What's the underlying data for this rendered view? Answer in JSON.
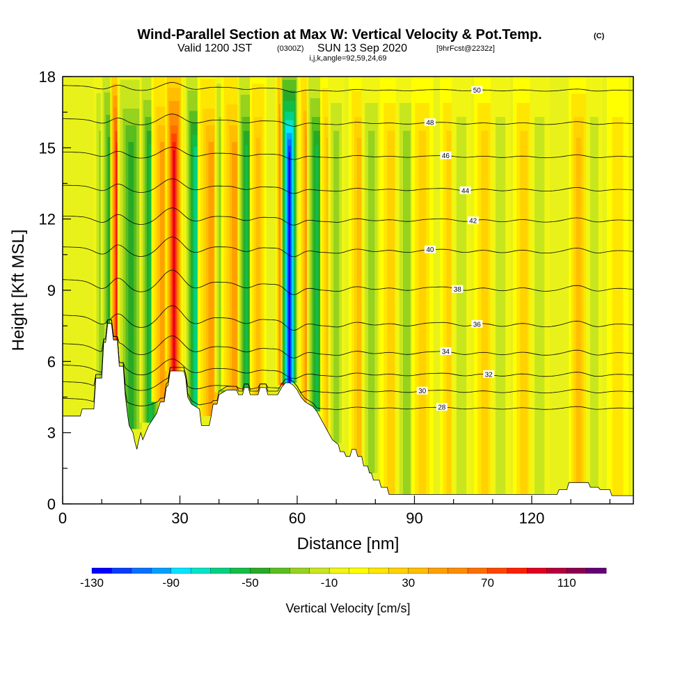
{
  "header": {
    "title_main": "Wind-Parallel Section at Max W: Vertical Velocity & Pot.Temp.",
    "title_mark": "(C)",
    "valid_a": "Valid 1200 JST",
    "valid_b": "(0300Z)",
    "valid_c": "SUN 13 Sep 2020",
    "valid_d": "[9hrFcst@2232z]",
    "params": "i,j,k,angle=92,59,24,69"
  },
  "chart_data": {
    "type": "heatmap",
    "xlabel": "Distance [nm]",
    "ylabel": "Height [Kft MSL]",
    "xlim": [
      0,
      146
    ],
    "ylim": [
      0,
      18
    ],
    "x_ticks": [
      0,
      30,
      60,
      90,
      120
    ],
    "y_ticks": [
      0,
      3,
      6,
      9,
      12,
      15,
      18
    ],
    "colorbar": {
      "label": "Vertical Velocity [cm/s]",
      "min": -130,
      "max": 130,
      "step": 10,
      "tick_values": [
        -130,
        -90,
        -50,
        -10,
        30,
        70,
        110
      ],
      "tick_labels": [
        "-130",
        "-90",
        "-50",
        "-10",
        "30",
        "70",
        "110"
      ],
      "colors": [
        "#0000ff",
        "#0a3cff",
        "#0a6eff",
        "#00a0ff",
        "#00e6ff",
        "#00e6c8",
        "#00d282",
        "#10be46",
        "#28aa28",
        "#5abe1e",
        "#96d21e",
        "#c8e61e",
        "#f0f514",
        "#ffff00",
        "#ffe600",
        "#ffd200",
        "#ffbe00",
        "#ffa000",
        "#ff8c00",
        "#ff6e00",
        "#ff4600",
        "#ff1e00",
        "#e10020",
        "#b4003c",
        "#8c0050",
        "#640078"
      ]
    },
    "vertical_velocity_features": [
      {
        "x": 10,
        "width": 1.5,
        "w": -30
      },
      {
        "x": 12,
        "width": 1.6,
        "w": -45
      },
      {
        "x": 14,
        "width": 1.3,
        "w": 100
      },
      {
        "x": 17.5,
        "width": 2.5,
        "w": -50
      },
      {
        "x": 22.5,
        "width": 2.0,
        "w": -55
      },
      {
        "x": 25.5,
        "width": 2.0,
        "w": 45
      },
      {
        "x": 28.5,
        "width": 1.6,
        "w": 95
      },
      {
        "x": 34,
        "width": 2.0,
        "w": -65
      },
      {
        "x": 38,
        "width": 2.5,
        "w": 50
      },
      {
        "x": 41,
        "width": 1.5,
        "w": -35
      },
      {
        "x": 44,
        "width": 2.5,
        "w": 45
      },
      {
        "x": 47,
        "width": 1.6,
        "w": -60
      },
      {
        "x": 50,
        "width": 1.5,
        "w": 35
      },
      {
        "x": 56.5,
        "width": 1.4,
        "w": 100
      },
      {
        "x": 58,
        "width": 1.6,
        "w": -125
      },
      {
        "x": 63,
        "width": 1.8,
        "w": 65
      },
      {
        "x": 65,
        "width": 1.8,
        "w": -60
      },
      {
        "x": 68,
        "width": 1.5,
        "w": 35
      },
      {
        "x": 70,
        "width": 1.5,
        "w": -30
      },
      {
        "x": 76,
        "width": 2.0,
        "w": 40
      },
      {
        "x": 79,
        "width": 1.8,
        "w": -25
      },
      {
        "x": 84,
        "width": 2.0,
        "w": 30
      },
      {
        "x": 88,
        "width": 2.0,
        "w": -25
      },
      {
        "x": 92,
        "width": 2.0,
        "w": 25
      },
      {
        "x": 99,
        "width": 1.8,
        "w": 30
      },
      {
        "x": 102,
        "width": 1.8,
        "w": -20
      },
      {
        "x": 108,
        "width": 2.0,
        "w": 25
      },
      {
        "x": 112,
        "width": 1.8,
        "w": -18
      },
      {
        "x": 118,
        "width": 2.0,
        "w": 25
      },
      {
        "x": 122,
        "width": 1.8,
        "w": -15
      },
      {
        "x": 132,
        "width": 1.8,
        "w": 40
      },
      {
        "x": 136,
        "width": 1.5,
        "w": -20
      },
      {
        "x": 142,
        "width": 2.0,
        "w": 15
      }
    ],
    "terrain": [
      [
        0,
        3.7
      ],
      [
        4.5,
        3.7
      ],
      [
        5,
        4.0
      ],
      [
        8,
        4.0
      ],
      [
        8.5,
        5.3
      ],
      [
        10,
        5.3
      ],
      [
        10.5,
        6.8
      ],
      [
        11,
        6.8
      ],
      [
        11.5,
        7.6
      ],
      [
        12.5,
        7.6
      ],
      [
        13,
        6.9
      ],
      [
        14,
        6.9
      ],
      [
        14.5,
        5.8
      ],
      [
        15.5,
        5.8
      ],
      [
        16,
        4.6
      ],
      [
        16.5,
        3.9
      ],
      [
        17,
        3.3
      ],
      [
        18,
        3.0
      ],
      [
        18.5,
        2.6
      ],
      [
        19,
        2.3
      ],
      [
        19.5,
        2.7
      ],
      [
        20,
        3.0
      ],
      [
        20.5,
        2.7
      ],
      [
        21,
        2.9
      ],
      [
        22,
        3.3
      ],
      [
        24,
        3.8
      ],
      [
        25,
        4.3
      ],
      [
        26,
        4.3
      ],
      [
        26.5,
        4.9
      ],
      [
        27,
        5.0
      ],
      [
        27.5,
        5.6
      ],
      [
        31,
        5.6
      ],
      [
        31.5,
        5.3
      ],
      [
        32,
        4.5
      ],
      [
        33,
        4.2
      ],
      [
        34,
        4.1
      ],
      [
        35,
        4.0
      ],
      [
        35.5,
        3.3
      ],
      [
        37.5,
        3.3
      ],
      [
        38,
        3.7
      ],
      [
        38.5,
        4.2
      ],
      [
        39.5,
        4.2
      ],
      [
        40,
        4.6
      ],
      [
        42,
        4.8
      ],
      [
        44.5,
        4.8
      ],
      [
        45,
        4.6
      ],
      [
        46,
        4.6
      ],
      [
        46.5,
        4.9
      ],
      [
        47.5,
        4.9
      ],
      [
        48,
        4.6
      ],
      [
        50,
        4.6
      ],
      [
        50.5,
        4.9
      ],
      [
        52,
        4.9
      ],
      [
        52.5,
        4.6
      ],
      [
        55,
        4.6
      ],
      [
        56,
        4.9
      ],
      [
        57,
        5.1
      ],
      [
        58,
        5.1
      ],
      [
        59,
        5.0
      ],
      [
        60,
        4.8
      ],
      [
        61,
        4.5
      ],
      [
        62,
        4.3
      ],
      [
        64,
        4.1
      ],
      [
        65,
        3.9
      ],
      [
        66,
        3.6
      ],
      [
        67,
        3.3
      ],
      [
        68,
        3.0
      ],
      [
        69,
        2.7
      ],
      [
        70.5,
        2.5
      ],
      [
        71,
        2.2
      ],
      [
        72,
        2.2
      ],
      [
        72.5,
        2.0
      ],
      [
        73.5,
        2.0
      ],
      [
        74,
        2.3
      ],
      [
        75,
        2.3
      ],
      [
        75.5,
        2.0
      ],
      [
        76.5,
        2.0
      ],
      [
        77,
        1.6
      ],
      [
        78,
        1.6
      ],
      [
        78.5,
        1.3
      ],
      [
        79,
        1.3
      ],
      [
        79.5,
        1.0
      ],
      [
        81,
        1.0
      ],
      [
        81.5,
        0.7
      ],
      [
        83,
        0.7
      ],
      [
        83.5,
        0.4
      ],
      [
        126.5,
        0.4
      ],
      [
        127,
        0.6
      ],
      [
        129,
        0.6
      ],
      [
        129.5,
        0.9
      ],
      [
        134.5,
        0.9
      ],
      [
        135,
        0.7
      ],
      [
        137,
        0.7
      ],
      [
        137.5,
        0.6
      ],
      [
        140,
        0.6
      ],
      [
        140.5,
        0.35
      ],
      [
        146,
        0.35
      ]
    ],
    "potential_temperature_contours": [
      {
        "level": 28,
        "label": "28",
        "base": 4.0,
        "bulge": 0.4,
        "label_x": 97
      },
      {
        "level": 30,
        "label": "30",
        "base": 4.7,
        "bulge": 0.5,
        "label_x": 92
      },
      {
        "level": 32,
        "label": "32",
        "base": 5.4,
        "bulge": 0.6,
        "label_x": 109
      },
      {
        "level": 34,
        "label": "34",
        "base": 6.3,
        "bulge": 0.7,
        "label_x": 98
      },
      {
        "level": 36,
        "label": "36",
        "base": 7.5,
        "bulge": 0.8,
        "label_x": 106
      },
      {
        "level": 38,
        "label": "38",
        "base": 9.0,
        "bulge": 0.8,
        "label_x": 101
      },
      {
        "level": 40,
        "label": "40",
        "base": 10.6,
        "bulge": 0.7,
        "label_x": 94
      },
      {
        "level": 42,
        "label": "42",
        "base": 11.9,
        "bulge": 0.6,
        "label_x": 105
      },
      {
        "level": 44,
        "label": "44",
        "base": 13.2,
        "bulge": 0.5,
        "label_x": 103
      },
      {
        "level": 46,
        "label": "46",
        "base": 14.6,
        "bulge": 0.4,
        "label_x": 98
      },
      {
        "level": 48,
        "label": "48",
        "base": 16.0,
        "bulge": 0.4,
        "label_x": 94
      },
      {
        "level": 50,
        "label": "50",
        "base": 17.4,
        "bulge": 0.3,
        "label_x": 106
      }
    ]
  }
}
